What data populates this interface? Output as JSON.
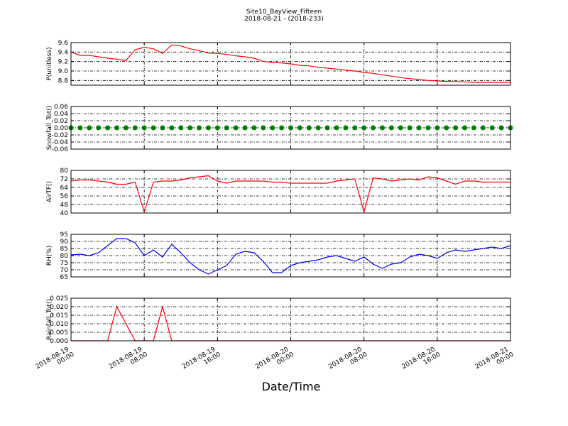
{
  "chart_data": [
    {
      "type": "line",
      "title": "Site10_BayView_Fifteen",
      "subtitle": "2018-08-21 - (2018-233)",
      "ylabel": "P(unitless)",
      "color": "#ff0000",
      "grid": true,
      "xlim": [
        "2018-08-19 00:00",
        "2018-08-21 00:00"
      ],
      "x": [
        "2018-08-19 00:00",
        "2018-08-19 01:00",
        "2018-08-19 02:00",
        "2018-08-19 03:00",
        "2018-08-19 04:00",
        "2018-08-19 05:00",
        "2018-08-19 06:00",
        "2018-08-19 07:00",
        "2018-08-19 08:00",
        "2018-08-19 09:00",
        "2018-08-19 10:00",
        "2018-08-19 11:00",
        "2018-08-19 12:00",
        "2018-08-19 13:00",
        "2018-08-19 14:00",
        "2018-08-19 15:00",
        "2018-08-19 16:00",
        "2018-08-19 17:00",
        "2018-08-19 18:00",
        "2018-08-19 19:00",
        "2018-08-19 20:00",
        "2018-08-19 21:00",
        "2018-08-19 22:00",
        "2018-08-19 23:00",
        "2018-08-20 00:00",
        "2018-08-20 01:00",
        "2018-08-20 02:00",
        "2018-08-20 03:00",
        "2018-08-20 04:00",
        "2018-08-20 05:00",
        "2018-08-20 06:00",
        "2018-08-20 07:00",
        "2018-08-20 08:00",
        "2018-08-20 09:00",
        "2018-08-20 10:00",
        "2018-08-20 11:00",
        "2018-08-20 12:00",
        "2018-08-20 13:00",
        "2018-08-20 14:00",
        "2018-08-20 15:00",
        "2018-08-20 16:00",
        "2018-08-20 17:00",
        "2018-08-20 18:00",
        "2018-08-20 19:00",
        "2018-08-20 20:00",
        "2018-08-20 21:00",
        "2018-08-20 22:00",
        "2018-08-20 23:00",
        "2018-08-21 00:00"
      ],
      "values": [
        9.4,
        9.33,
        9.33,
        9.3,
        9.27,
        9.25,
        9.22,
        9.45,
        9.5,
        9.47,
        9.37,
        9.55,
        9.53,
        9.47,
        9.43,
        9.38,
        9.37,
        9.35,
        9.32,
        9.3,
        9.27,
        9.2,
        9.18,
        9.17,
        9.15,
        9.12,
        9.11,
        9.08,
        9.06,
        9.04,
        9.02,
        9.0,
        8.97,
        8.95,
        8.92,
        8.89,
        8.86,
        8.84,
        8.82,
        8.8,
        8.79,
        8.78,
        8.78,
        8.77,
        8.76,
        8.76,
        8.76,
        8.76,
        8.76
      ],
      "ylim": [
        8.7,
        9.6
      ],
      "yticks": [
        8.8,
        {
          "value": 9,
          "label": "9.0"
        },
        9.2,
        9.4,
        9.6
      ]
    },
    {
      "type": "scatter",
      "ylabel": "Snowfall_Tot()",
      "color": "#008000",
      "grid": true,
      "xlim": [
        "2018-08-19 00:00",
        "2018-08-21 00:00"
      ],
      "x": [
        "2018-08-19 00:00",
        "2018-08-19 01:00",
        "2018-08-19 02:00",
        "2018-08-19 03:00",
        "2018-08-19 04:00",
        "2018-08-19 05:00",
        "2018-08-19 06:00",
        "2018-08-19 07:00",
        "2018-08-19 08:00",
        "2018-08-19 09:00",
        "2018-08-19 10:00",
        "2018-08-19 11:00",
        "2018-08-19 12:00",
        "2018-08-19 13:00",
        "2018-08-19 14:00",
        "2018-08-19 15:00",
        "2018-08-19 16:00",
        "2018-08-19 17:00",
        "2018-08-19 18:00",
        "2018-08-19 19:00",
        "2018-08-19 20:00",
        "2018-08-19 21:00",
        "2018-08-19 22:00",
        "2018-08-19 23:00",
        "2018-08-20 00:00",
        "2018-08-20 01:00",
        "2018-08-20 02:00",
        "2018-08-20 03:00",
        "2018-08-20 04:00",
        "2018-08-20 05:00",
        "2018-08-20 06:00",
        "2018-08-20 07:00",
        "2018-08-20 08:00",
        "2018-08-20 09:00",
        "2018-08-20 10:00",
        "2018-08-20 11:00",
        "2018-08-20 12:00",
        "2018-08-20 13:00",
        "2018-08-20 14:00",
        "2018-08-20 15:00",
        "2018-08-20 16:00",
        "2018-08-20 17:00",
        "2018-08-20 18:00",
        "2018-08-20 19:00",
        "2018-08-20 20:00",
        "2018-08-20 21:00",
        "2018-08-20 22:00",
        "2018-08-20 23:00",
        "2018-08-21 00:00"
      ],
      "values": [
        0,
        0,
        0,
        0,
        0,
        0,
        0,
        0,
        0,
        0,
        0,
        0,
        0,
        0,
        0,
        0,
        0,
        0,
        0,
        0,
        0,
        0,
        0,
        0,
        0,
        0,
        0,
        0,
        0,
        0,
        0,
        0,
        0,
        0,
        0,
        0,
        0,
        0,
        0,
        0,
        0,
        0,
        0,
        0,
        0,
        0,
        0,
        0,
        0
      ],
      "ylim": [
        -0.06,
        0.06
      ],
      "yticks": [
        -0.06,
        -0.04,
        -0.02,
        {
          "value": 0,
          "label": "0.00"
        },
        0.02,
        0.04,
        0.06
      ]
    },
    {
      "type": "line",
      "ylabel": "AirTF()",
      "color": "#ff0000",
      "grid": true,
      "xlim": [
        "2018-08-19 00:00",
        "2018-08-21 00:00"
      ],
      "x": [
        "2018-08-19 00:00",
        "2018-08-19 01:00",
        "2018-08-19 02:00",
        "2018-08-19 03:00",
        "2018-08-19 04:00",
        "2018-08-19 05:00",
        "2018-08-19 06:00",
        "2018-08-19 07:00",
        "2018-08-19 08:00",
        "2018-08-19 09:00",
        "2018-08-19 10:00",
        "2018-08-19 11:00",
        "2018-08-19 12:00",
        "2018-08-19 13:00",
        "2018-08-19 14:00",
        "2018-08-19 15:00",
        "2018-08-19 16:00",
        "2018-08-19 17:00",
        "2018-08-19 18:00",
        "2018-08-19 19:00",
        "2018-08-19 20:00",
        "2018-08-19 21:00",
        "2018-08-19 22:00",
        "2018-08-19 23:00",
        "2018-08-20 00:00",
        "2018-08-20 01:00",
        "2018-08-20 02:00",
        "2018-08-20 03:00",
        "2018-08-20 04:00",
        "2018-08-20 05:00",
        "2018-08-20 06:00",
        "2018-08-20 07:00",
        "2018-08-20 08:00",
        "2018-08-20 09:00",
        "2018-08-20 10:00",
        "2018-08-20 11:00",
        "2018-08-20 12:00",
        "2018-08-20 13:00",
        "2018-08-20 14:00",
        "2018-08-20 15:00",
        "2018-08-20 16:00",
        "2018-08-20 17:00",
        "2018-08-20 18:00",
        "2018-08-20 19:00",
        "2018-08-20 20:00",
        "2018-08-20 21:00",
        "2018-08-20 22:00",
        "2018-08-20 23:00",
        "2018-08-21 00:00"
      ],
      "values": [
        70,
        71,
        71,
        70,
        69,
        67,
        67,
        69,
        41,
        69,
        70,
        70,
        71,
        73,
        74,
        75,
        70,
        68,
        70,
        70,
        70,
        70,
        69,
        69,
        68,
        68,
        68,
        68,
        68,
        70,
        71,
        72,
        41,
        73,
        72,
        70,
        71,
        72,
        71,
        74,
        73,
        70,
        67,
        70,
        70,
        69,
        69,
        69,
        69
      ],
      "ylim": [
        40,
        80
      ],
      "yticks": [
        40,
        48,
        56,
        64,
        72,
        80
      ]
    },
    {
      "type": "line",
      "ylabel": "RH(%)",
      "color": "#0000ff",
      "grid": true,
      "xlim": [
        "2018-08-19 00:00",
        "2018-08-21 00:00"
      ],
      "x": [
        "2018-08-19 00:00",
        "2018-08-19 01:00",
        "2018-08-19 02:00",
        "2018-08-19 03:00",
        "2018-08-19 04:00",
        "2018-08-19 05:00",
        "2018-08-19 06:00",
        "2018-08-19 07:00",
        "2018-08-19 08:00",
        "2018-08-19 09:00",
        "2018-08-19 10:00",
        "2018-08-19 11:00",
        "2018-08-19 12:00",
        "2018-08-19 13:00",
        "2018-08-19 14:00",
        "2018-08-19 15:00",
        "2018-08-19 16:00",
        "2018-08-19 17:00",
        "2018-08-19 18:00",
        "2018-08-19 19:00",
        "2018-08-19 20:00",
        "2018-08-19 21:00",
        "2018-08-19 22:00",
        "2018-08-19 23:00",
        "2018-08-20 00:00",
        "2018-08-20 01:00",
        "2018-08-20 02:00",
        "2018-08-20 03:00",
        "2018-08-20 04:00",
        "2018-08-20 05:00",
        "2018-08-20 06:00",
        "2018-08-20 07:00",
        "2018-08-20 08:00",
        "2018-08-20 09:00",
        "2018-08-20 10:00",
        "2018-08-20 11:00",
        "2018-08-20 12:00",
        "2018-08-20 13:00",
        "2018-08-20 14:00",
        "2018-08-20 15:00",
        "2018-08-20 16:00",
        "2018-08-20 17:00",
        "2018-08-20 18:00",
        "2018-08-20 19:00",
        "2018-08-20 20:00",
        "2018-08-20 21:00",
        "2018-08-20 22:00",
        "2018-08-20 23:00",
        "2018-08-21 00:00"
      ],
      "values": [
        80.5,
        81,
        80,
        82,
        87,
        92,
        92,
        89,
        80,
        84,
        79,
        88,
        82,
        75,
        70,
        67,
        70,
        73,
        81,
        83,
        82,
        76,
        68,
        68,
        73,
        75,
        76,
        77,
        79,
        80,
        78,
        76,
        79,
        74,
        71,
        74,
        75,
        79,
        81,
        80,
        78,
        82,
        84,
        83,
        84,
        85,
        86,
        85,
        87
      ],
      "ylim": [
        65,
        95
      ],
      "yticks": [
        65,
        70,
        75,
        80,
        85,
        90,
        95
      ]
    },
    {
      "type": "line",
      "ylabel": "Rainfall_Tot()",
      "xlabel": "Date/Time",
      "color": "#ff0000",
      "grid": true,
      "xlim": [
        "2018-08-19 00:00",
        "2018-08-21 00:00"
      ],
      "x": [
        "2018-08-19 00:00",
        "2018-08-19 01:00",
        "2018-08-19 02:00",
        "2018-08-19 03:00",
        "2018-08-19 04:00",
        "2018-08-19 05:00",
        "2018-08-19 06:00",
        "2018-08-19 07:00",
        "2018-08-19 08:00",
        "2018-08-19 09:00",
        "2018-08-19 10:00",
        "2018-08-19 11:00",
        "2018-08-19 12:00",
        "2018-08-19 13:00",
        "2018-08-19 14:00",
        "2018-08-19 15:00",
        "2018-08-19 16:00",
        "2018-08-19 17:00",
        "2018-08-19 18:00",
        "2018-08-19 19:00",
        "2018-08-19 20:00",
        "2018-08-19 21:00",
        "2018-08-19 22:00",
        "2018-08-19 23:00",
        "2018-08-20 00:00",
        "2018-08-20 01:00",
        "2018-08-20 02:00",
        "2018-08-20 03:00",
        "2018-08-20 04:00",
        "2018-08-20 05:00",
        "2018-08-20 06:00",
        "2018-08-20 07:00",
        "2018-08-20 08:00",
        "2018-08-20 09:00",
        "2018-08-20 10:00",
        "2018-08-20 11:00",
        "2018-08-20 12:00",
        "2018-08-20 13:00",
        "2018-08-20 14:00",
        "2018-08-20 15:00",
        "2018-08-20 16:00",
        "2018-08-20 17:00",
        "2018-08-20 18:00",
        "2018-08-20 19:00",
        "2018-08-20 20:00",
        "2018-08-20 21:00",
        "2018-08-20 22:00",
        "2018-08-20 23:00",
        "2018-08-21 00:00"
      ],
      "values": [
        0,
        0,
        0,
        0,
        0,
        0.02,
        0.01,
        0,
        0,
        0,
        0.02,
        0,
        0,
        0,
        0,
        0,
        0,
        0,
        0,
        0,
        0,
        0,
        0,
        0,
        0,
        0,
        0,
        0,
        0,
        0,
        0,
        0,
        0,
        0,
        0,
        0,
        0,
        0,
        0,
        0,
        0,
        0,
        0,
        0,
        0,
        0,
        0,
        0,
        0
      ],
      "ylim": [
        0,
        0.025
      ],
      "yticks": [
        {
          "value": 0,
          "label": "0.000"
        },
        0.005,
        {
          "value": 0.01,
          "label": "0.010"
        },
        0.015,
        {
          "value": 0.02,
          "label": "0.020"
        },
        0.025
      ],
      "xticks": [
        "2018-08-19 00:00",
        "2018-08-19 08:00",
        "2018-08-19 16:00",
        "2018-08-20 00:00",
        "2018-08-20 08:00",
        "2018-08-20 16:00",
        "2018-08-21 00:00"
      ]
    }
  ]
}
